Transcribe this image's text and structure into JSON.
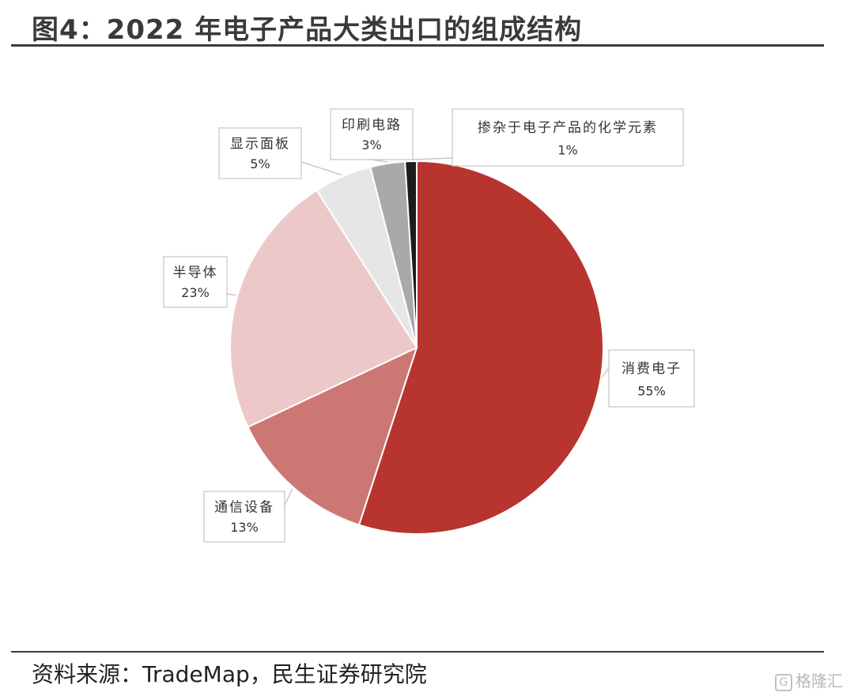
{
  "header": {
    "title": "图4：2022 年电子产品大类出口的组成结构"
  },
  "footer": {
    "source": "资料来源：TradeMap，民生证券研究院",
    "watermark": "格隆汇"
  },
  "chart_data": {
    "type": "pie",
    "title": "",
    "start_angle_deg": 0,
    "direction": "clockwise",
    "slices": [
      {
        "label": "消费电子",
        "value": 55,
        "value_label": "55%",
        "color": "#b8342f"
      },
      {
        "label": "通信设备",
        "value": 13,
        "value_label": "13%",
        "color": "#cd7775"
      },
      {
        "label": "半导体",
        "value": 23,
        "value_label": "23%",
        "color": "#ecc9c8"
      },
      {
        "label": "显示面板",
        "value": 5,
        "value_label": "5%",
        "color": "#e6e6e8"
      },
      {
        "label": "印刷电路",
        "value": 3,
        "value_label": "3%",
        "color": "#a9a9a9"
      },
      {
        "label": "掺杂于电子产品的化学元素",
        "value": 1,
        "value_label": "1%",
        "color": "#1c1c1c"
      }
    ]
  }
}
